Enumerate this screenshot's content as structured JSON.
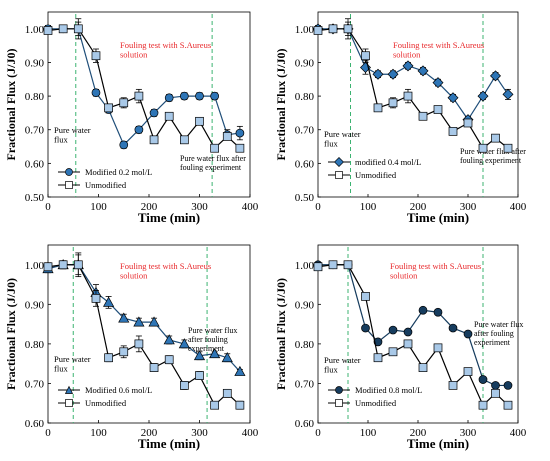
{
  "colors": {
    "modified_a": "#1f4e79",
    "modified_b": "#1f4e79",
    "modified_c": "#1f4e79",
    "modified_d": "#163c5e",
    "modified_fill_light": "#2e75b6",
    "unmodified_fill": "#a9c9e8",
    "guide_line": "#3cb371",
    "annotation_red": "#e8282b"
  },
  "chart_data": [
    {
      "type": "line",
      "panel": "top-left",
      "xlabel": "Time (min)",
      "ylabel": "Fractional  Flux (J/J0)",
      "xlim": [
        0,
        400
      ],
      "ylim": [
        0.5,
        1.05
      ],
      "xticks": [
        "0",
        "100",
        "200",
        "300",
        "400"
      ],
      "yticks": [
        "0.50",
        "0.60",
        "0.70",
        "0.80",
        "0.90",
        "1.00"
      ],
      "guides_x": [
        55,
        325
      ],
      "annotations": {
        "pure_water": "Pure water flux",
        "fouling_test": "Fouling test with S.Aureus solution",
        "after_fouling": "Pure water flux after fouling experiment"
      },
      "legend": [
        "Modified 0.2 mol/L",
        "Unmodified"
      ],
      "series": [
        {
          "name": "Modified 0.2 mol/L",
          "marker": "circle",
          "x": [
            0,
            30,
            60,
            95,
            120,
            150,
            180,
            210,
            240,
            270,
            300,
            330,
            355,
            380
          ],
          "y": [
            1.0,
            1.0,
            1.0,
            0.81,
            0.76,
            0.655,
            0.7,
            0.75,
            0.795,
            0.8,
            0.8,
            0.8,
            0.685,
            0.69
          ],
          "err": [
            0.01,
            0.01,
            0.02,
            0.01,
            0.01,
            0.01,
            0.01,
            0.01,
            0.01,
            0.01,
            0.01,
            0.01,
            0.015,
            0.02
          ]
        },
        {
          "name": "Unmodified",
          "marker": "square",
          "x": [
            0,
            30,
            60,
            95,
            120,
            150,
            180,
            210,
            240,
            270,
            300,
            330,
            355,
            380
          ],
          "y": [
            0.995,
            1.0,
            1.0,
            0.92,
            0.765,
            0.78,
            0.8,
            0.67,
            0.74,
            0.67,
            0.725,
            0.645,
            0.68,
            0.645
          ],
          "err": [
            0.01,
            0.01,
            0.03,
            0.02,
            0.01,
            0.015,
            0.02,
            0.01,
            0.01,
            0.01,
            0.01,
            0.005,
            0.01,
            0.01
          ]
        }
      ]
    },
    {
      "type": "line",
      "panel": "top-right",
      "xlabel": "Time (min)",
      "ylabel": "Fractional  Flux (J/J0)",
      "xlim": [
        0,
        400
      ],
      "ylim": [
        0.5,
        1.05
      ],
      "xticks": [
        "0",
        "100",
        "200",
        "300",
        "400"
      ],
      "yticks": [
        "0.50",
        "0.60",
        "0.70",
        "0.80",
        "0.90",
        "1.00"
      ],
      "guides_x": [
        65,
        330
      ],
      "annotations": {
        "pure_water": "Pure water flux",
        "fouling_test": "Fouling test with S.Aureus solution",
        "after_fouling": "Pure water flux after fouling experiment"
      },
      "legend": [
        "modified 0.4 mol/L",
        "Unmodified"
      ],
      "series": [
        {
          "name": "modified 0.4 mol/L",
          "marker": "diamond",
          "x": [
            0,
            30,
            60,
            95,
            120,
            150,
            180,
            210,
            240,
            270,
            300,
            330,
            355,
            380
          ],
          "y": [
            1.0,
            1.0,
            1.0,
            0.885,
            0.865,
            0.865,
            0.89,
            0.875,
            0.84,
            0.795,
            0.73,
            0.8,
            0.86,
            0.805
          ],
          "err": [
            0.01,
            0.01,
            0.02,
            0.02,
            0.01,
            0.01,
            0.01,
            0.01,
            0.01,
            0.01,
            0.01,
            0.01,
            0.01,
            0.015
          ]
        },
        {
          "name": "Unmodified",
          "marker": "square",
          "x": [
            0,
            30,
            60,
            95,
            120,
            150,
            180,
            210,
            240,
            270,
            300,
            330,
            355,
            380
          ],
          "y": [
            0.995,
            1.0,
            1.0,
            0.92,
            0.765,
            0.78,
            0.8,
            0.74,
            0.76,
            0.695,
            0.72,
            0.645,
            0.675,
            0.645
          ],
          "err": [
            0.01,
            0.01,
            0.03,
            0.02,
            0.01,
            0.015,
            0.02,
            0.01,
            0.01,
            0.01,
            0.01,
            0.005,
            0.01,
            0.01
          ]
        }
      ]
    },
    {
      "type": "line",
      "panel": "bottom-left",
      "xlabel": "Time (min)",
      "ylabel": "Fractional Flux (J/J0)",
      "xlim": [
        0,
        400
      ],
      "ylim": [
        0.6,
        1.05
      ],
      "xticks": [
        "0",
        "100",
        "200",
        "300",
        "400"
      ],
      "yticks": [
        "0.60",
        "0.70",
        "0.80",
        "0.90",
        "1.00"
      ],
      "guides_x": [
        50,
        315
      ],
      "annotations": {
        "pure_water": "Pure water flux",
        "fouling_test": "Fouling test with S.Aureus solution",
        "after_fouling": "Pure water flux after fouling experiment"
      },
      "legend": [
        "Modified 0.6 mol/L",
        "Unmodified"
      ],
      "series": [
        {
          "name": "Modified 0.6 mol/L",
          "marker": "triangle",
          "x": [
            0,
            30,
            60,
            95,
            120,
            150,
            180,
            210,
            240,
            270,
            300,
            330,
            355,
            380
          ],
          "y": [
            0.99,
            1.0,
            1.0,
            0.93,
            0.905,
            0.865,
            0.855,
            0.855,
            0.81,
            0.8,
            0.77,
            0.775,
            0.765,
            0.73
          ],
          "err": [
            0.01,
            0.01,
            0.025,
            0.02,
            0.015,
            0.01,
            0.01,
            0.01,
            0.01,
            0.01,
            0.01,
            0.005,
            0.01,
            0.005
          ]
        },
        {
          "name": "Unmodified",
          "marker": "square",
          "x": [
            0,
            30,
            60,
            95,
            120,
            150,
            180,
            210,
            240,
            270,
            300,
            330,
            355,
            380
          ],
          "y": [
            0.995,
            1.0,
            1.0,
            0.915,
            0.765,
            0.78,
            0.8,
            0.74,
            0.76,
            0.695,
            0.72,
            0.645,
            0.675,
            0.645
          ],
          "err": [
            0.01,
            0.01,
            0.03,
            0.02,
            0.01,
            0.015,
            0.02,
            0.01,
            0.01,
            0.01,
            0.01,
            0.005,
            0.01,
            0.01
          ]
        }
      ]
    },
    {
      "type": "line",
      "panel": "bottom-right",
      "xlabel": "Time (min)",
      "ylabel": "Fractional Flux (J/J0)",
      "xlim": [
        0,
        400
      ],
      "ylim": [
        0.6,
        1.05
      ],
      "xticks": [
        "0",
        "100",
        "200",
        "300",
        "400"
      ],
      "yticks": [
        "0.60",
        "0.70",
        "0.80",
        "0.90",
        "1.00"
      ],
      "guides_x": [
        60,
        330
      ],
      "annotations": {
        "pure_water": "Pure water flux",
        "fouling_test": "Fouling test with S.Aureus solution",
        "after_fouling": "Pure water flux after fouling experiment"
      },
      "legend": [
        "Modified 0.8 mol/L",
        "Unmodified"
      ],
      "series": [
        {
          "name": "Modified 0.8 mol/L",
          "marker": "circle",
          "x": [
            0,
            30,
            60,
            95,
            120,
            150,
            180,
            210,
            240,
            270,
            300,
            330,
            355,
            380
          ],
          "y": [
            1.0,
            1.0,
            1.0,
            0.84,
            0.805,
            0.835,
            0.83,
            0.885,
            0.88,
            0.84,
            0.825,
            0.71,
            0.695,
            0.695
          ],
          "err": [
            0.0,
            0.0,
            0.005,
            0.005,
            0.005,
            0.005,
            0.005,
            0.005,
            0.005,
            0.005,
            0.005,
            0.005,
            0.005,
            0.005
          ]
        },
        {
          "name": "Unmodified",
          "marker": "square",
          "x": [
            0,
            30,
            60,
            95,
            120,
            150,
            180,
            210,
            240,
            270,
            300,
            330,
            355,
            380
          ],
          "y": [
            0.995,
            1.0,
            1.0,
            0.92,
            0.765,
            0.78,
            0.8,
            0.74,
            0.79,
            0.695,
            0.73,
            0.645,
            0.675,
            0.645
          ],
          "err": [
            0.005,
            0.005,
            0.005,
            0.005,
            0.005,
            0.005,
            0.005,
            0.005,
            0.005,
            0.005,
            0.005,
            0.005,
            0.005,
            0.005
          ]
        }
      ]
    }
  ]
}
